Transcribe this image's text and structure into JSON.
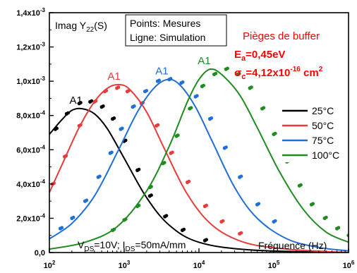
{
  "chart_data": {
    "type": "line",
    "ylabel_text": {
      "main": "Imag Y",
      "sub": "22",
      "tail": "(S)"
    },
    "xlabel": "Fréquence (Hz)",
    "x_scale": "log",
    "xlim": [
      100,
      1000000
    ],
    "ylim": [
      0,
      0.0014
    ],
    "grid": false,
    "x_ticks": [
      {
        "value": 100,
        "base": "10",
        "exp": "2"
      },
      {
        "value": 1000,
        "base": "10",
        "exp": "3"
      },
      {
        "value": 10000,
        "base": "10",
        "exp": "4"
      },
      {
        "value": 100000,
        "base": "10",
        "exp": "5"
      },
      {
        "value": 1000000,
        "base": "10",
        "exp": "6"
      }
    ],
    "y_ticks": [
      {
        "value": 0.0,
        "mant": "0,0",
        "exp": ""
      },
      {
        "value": 0.0002,
        "mant": "2,0x10",
        "exp": "-4"
      },
      {
        "value": 0.0004,
        "mant": "4,0x10",
        "exp": "-4"
      },
      {
        "value": 0.0006,
        "mant": "6,0x10",
        "exp": "-4"
      },
      {
        "value": 0.0008,
        "mant": "8,0x10",
        "exp": "-4"
      },
      {
        "value": 0.001,
        "mant": "1,0x10",
        "exp": "-3"
      },
      {
        "value": 0.0012,
        "mant": "1,2x10",
        "exp": "-3"
      },
      {
        "value": 0.0014,
        "mant": "1,4x10",
        "exp": "-3"
      }
    ],
    "info_box": {
      "line1": "Points: Mesures",
      "line2": "Ligne: Simulation"
    },
    "trap_annotation": {
      "title": "Pièges de buffer",
      "ea_symbol": "E",
      "ea_sub": "a",
      "ea_value": "=0,45eV",
      "sigma_symbol": "σ",
      "sigma_sub": "c",
      "sigma_value": "=4,12x10",
      "sigma_exp": "-16",
      "sigma_unit": " cm",
      "sigma_unit_exp": "2"
    },
    "bias_annotation": {
      "v": "V",
      "v_sub": "DS",
      "v_value": "=10V; I",
      "i_sub": "DS",
      "i_value": "=50mA/mm"
    },
    "series": [
      {
        "name": "25°C",
        "color": "#000000",
        "peak_label": "A1",
        "peak_f": 270,
        "peak_y": 0.00084,
        "sim": [
          [
            100,
            0.00069
          ],
          [
            150,
            0.00078
          ],
          [
            200,
            0.00083
          ],
          [
            270,
            0.00084
          ],
          [
            400,
            0.00081
          ],
          [
            600,
            0.00072
          ],
          [
            1000,
            0.00055
          ],
          [
            2000,
            0.00032
          ],
          [
            4000,
            0.00016
          ],
          [
            10000,
            6e-05
          ],
          [
            50000,
            1.5e-05
          ],
          [
            1000000,
            0.0
          ]
        ],
        "meas": [
          [
            120,
            0.00072
          ],
          [
            170,
            0.00081
          ],
          [
            250,
            0.00087
          ],
          [
            350,
            0.00088
          ],
          [
            500,
            0.00085
          ],
          [
            700,
            0.00078
          ],
          [
            1000,
            0.00065
          ],
          [
            1500,
            0.00048
          ],
          [
            2200,
            0.00033
          ],
          [
            3500,
            0.00021
          ],
          [
            6000,
            0.00013
          ],
          [
            12000,
            7e-05
          ]
        ]
      },
      {
        "name": "50°C",
        "color": "#e83b3b",
        "peak_label": "A1",
        "peak_f": 870,
        "peak_y": 0.00098,
        "sim": [
          [
            100,
            0.00035
          ],
          [
            150,
            0.00052
          ],
          [
            250,
            0.00073
          ],
          [
            400,
            0.00088
          ],
          [
            600,
            0.00096
          ],
          [
            870,
            0.00098
          ],
          [
            1200,
            0.00095
          ],
          [
            2000,
            0.00082
          ],
          [
            3500,
            0.0006
          ],
          [
            7000,
            0.00034
          ],
          [
            15000,
            0.00016
          ],
          [
            40000,
            6e-05
          ],
          [
            150000,
            2e-05
          ],
          [
            1000000,
            0.0
          ]
        ],
        "meas": [
          [
            110,
            0.0004
          ],
          [
            160,
            0.00056
          ],
          [
            250,
            0.00074
          ],
          [
            400,
            0.00088
          ],
          [
            550,
            0.00094
          ],
          [
            800,
            0.00096
          ],
          [
            1100,
            0.00094
          ],
          [
            1700,
            0.00087
          ],
          [
            2700,
            0.00074
          ],
          [
            4200,
            0.00058
          ],
          [
            7000,
            0.00041
          ],
          [
            12000,
            0.00027
          ],
          [
            20000,
            0.00018
          ],
          [
            35000,
            0.00011
          ]
        ]
      },
      {
        "name": "75°C",
        "color": "#1f6fd6",
        "peak_label": "A1",
        "peak_f": 3800,
        "peak_y": 0.00101,
        "sim": [
          [
            100,
            8e-05
          ],
          [
            200,
            0.00017
          ],
          [
            400,
            0.00033
          ],
          [
            800,
            0.00058
          ],
          [
            1500,
            0.00082
          ],
          [
            2500,
            0.00096
          ],
          [
            3800,
            0.00101
          ],
          [
            5500,
            0.00098
          ],
          [
            9000,
            0.00085
          ],
          [
            15000,
            0.00065
          ],
          [
            30000,
            0.00038
          ],
          [
            60000,
            0.0002
          ],
          [
            150000,
            8e-05
          ],
          [
            400000,
            3e-05
          ],
          [
            1000000,
            1e-05
          ]
        ],
        "meas": [
          [
            140,
            0.00014
          ],
          [
            200,
            0.0002
          ],
          [
            300,
            0.0003
          ],
          [
            450,
            0.00044
          ],
          [
            650,
            0.00058
          ],
          [
            900,
            0.00072
          ],
          [
            1300,
            0.00085
          ],
          [
            1900,
            0.00094
          ],
          [
            2800,
            0.001
          ],
          [
            4000,
            0.00101
          ],
          [
            5800,
            0.00099
          ],
          [
            9000,
            0.00091
          ],
          [
            14000,
            0.00078
          ],
          [
            22000,
            0.00061
          ],
          [
            35000,
            0.00044
          ],
          [
            60000,
            0.00028
          ],
          [
            100000,
            0.00018
          ]
        ]
      },
      {
        "name": "100°C",
        "color": "#1f8c1f",
        "peak_label": "A1",
        "peak_f": 14000,
        "peak_y": 0.00107,
        "sim": [
          [
            100,
            2e-05
          ],
          [
            300,
            6e-05
          ],
          [
            800,
            0.00015
          ],
          [
            2000,
            0.00036
          ],
          [
            4000,
            0.00062
          ],
          [
            7000,
            0.00088
          ],
          [
            10000,
            0.00101
          ],
          [
            14000,
            0.00107
          ],
          [
            20000,
            0.00104
          ],
          [
            35000,
            0.00092
          ],
          [
            60000,
            0.00073
          ],
          [
            120000,
            0.00047
          ],
          [
            250000,
            0.00025
          ],
          [
            500000,
            0.00012
          ],
          [
            1000000,
            6e-05
          ]
        ],
        "meas": [
          [
            700,
            0.00013
          ],
          [
            1000,
            0.00019
          ],
          [
            1500,
            0.00027
          ],
          [
            2200,
            0.00038
          ],
          [
            3300,
            0.00052
          ],
          [
            5000,
            0.00068
          ],
          [
            7500,
            0.00084
          ],
          [
            11000,
            0.00097
          ],
          [
            16000,
            0.00104
          ],
          [
            23000,
            0.00107
          ],
          [
            33000,
            0.00104
          ],
          [
            48000,
            0.00096
          ],
          [
            70000,
            0.00084
          ],
          [
            100000,
            0.00069
          ],
          [
            150000,
            0.00053
          ],
          [
            220000,
            0.00039
          ],
          [
            320000,
            0.00028
          ],
          [
            480000,
            0.0002
          ],
          [
            700000,
            0.00014
          ],
          [
            1000000,
            0.0001
          ]
        ]
      }
    ]
  }
}
